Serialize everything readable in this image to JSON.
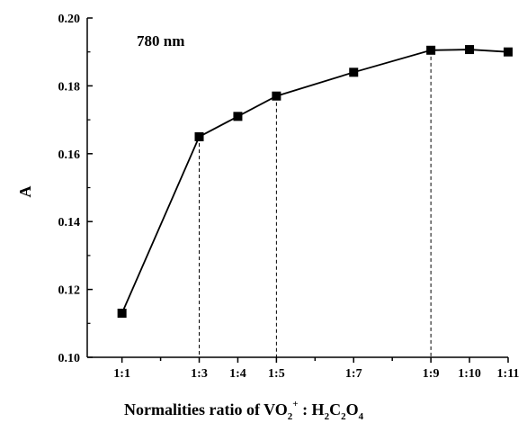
{
  "chart_data": {
    "type": "line",
    "title": "",
    "xlabel_parts": {
      "prefix": "Normalities ratio of VO",
      "vo_sub": "2",
      "vo_sup": "+",
      "separator": " : H",
      "h_sub": "2",
      "c": "C",
      "c_sub": "2",
      "o": "O",
      "o_sub": "4"
    },
    "ylabel": "A",
    "annotation": "780 nm",
    "x": [
      1,
      3,
      4,
      5,
      7,
      9,
      10,
      11
    ],
    "x_tick_labels": [
      "1:1",
      "1:3",
      "1:4",
      "1:5",
      "1:7",
      "1:9",
      "1:10",
      "1:11"
    ],
    "xlim": [
      0.1,
      11
    ],
    "ylim": [
      0.1,
      0.2
    ],
    "y_ticks": [
      0.1,
      0.12,
      0.14,
      0.16,
      0.18,
      0.2
    ],
    "y_tick_labels": [
      "0.10",
      "0.12",
      "0.14",
      "0.16",
      "0.18",
      "0.20"
    ],
    "series": [
      {
        "values": [
          0.113,
          0.165,
          0.171,
          0.177,
          0.184,
          0.1905,
          0.1907,
          0.19
        ]
      }
    ],
    "reference_lines_at_x": [
      3,
      5,
      9
    ],
    "marker": "square",
    "grid": false
  }
}
